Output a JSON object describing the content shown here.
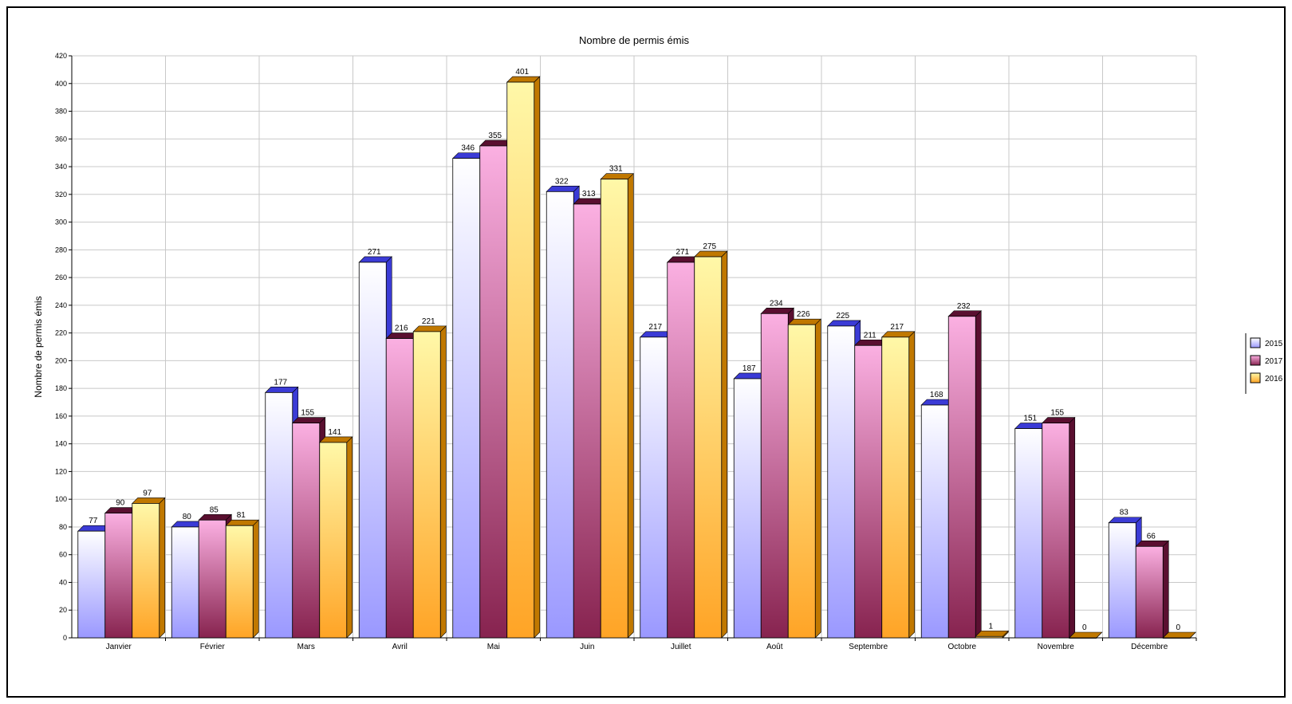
{
  "chart_data": {
    "type": "bar",
    "title": "Nombre de permis émis",
    "ylabel": "Nombre de permis émis",
    "xlabel": "",
    "ylim": [
      0,
      420
    ],
    "ytick_step": 20,
    "grid": true,
    "legend_position": "right",
    "categories": [
      "Janvier",
      "Février",
      "Mars",
      "Avril",
      "Mai",
      "Juin",
      "Juillet",
      "Août",
      "Septembre",
      "Octobre",
      "Novembre",
      "Décembre"
    ],
    "series": [
      {
        "name": "2015",
        "values": [
          77,
          80,
          177,
          271,
          346,
          322,
          217,
          187,
          225,
          168,
          151,
          83
        ],
        "colors": {
          "top": "#ffffff",
          "bottom": "#9a98ff",
          "side": "#3b3bd6"
        }
      },
      {
        "name": "2017",
        "values": [
          90,
          85,
          155,
          216,
          355,
          313,
          271,
          234,
          211,
          232,
          155,
          66
        ],
        "colors": {
          "top": "#fbb0e2",
          "bottom": "#87234f",
          "side": "#5a0f30"
        }
      },
      {
        "name": "2016",
        "values": [
          97,
          81,
          141,
          221,
          401,
          331,
          275,
          226,
          217,
          1,
          0,
          0
        ],
        "colors": {
          "top": "#fff8a8",
          "bottom": "#ffa426",
          "side": "#c07800"
        }
      }
    ]
  }
}
